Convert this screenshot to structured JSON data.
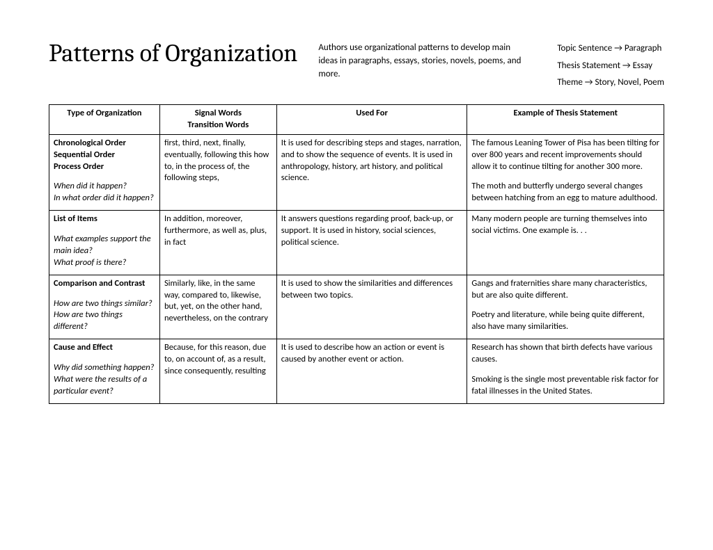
{
  "header": {
    "title": "Patterns of Organization",
    "intro": "Authors use organizational patterns to develop main ideas in paragraphs, essays, stories, novels, poems, and more.",
    "note1": "Topic Sentence → Paragraph",
    "note2": "Thesis Statement → Essay",
    "note3": "Theme → Story, Novel, Poem"
  },
  "table": {
    "headers": {
      "col1": "Type of Organization",
      "col2a": "Signal Words",
      "col2b": "Transition Words",
      "col3": "Used For",
      "col4": "Example of Thesis Statement"
    },
    "rows": [
      {
        "type_bold1": "Chronological Order",
        "type_bold2": "Sequential Order",
        "type_bold3": "Process Order",
        "type_q1": "When did it happen?",
        "type_q2": "In what order did it happen?",
        "signals": "first, third, next, finally, eventually, following this how to, in the process of, the following steps,",
        "used": "It is used for describing steps and stages, narration, and to show the sequence of events.  It is used in anthropology, history, art history, and political science.",
        "ex1": "The famous Leaning Tower of Pisa has been tilting for over 800 years and recent improvements should allow it to continue tilting for another 300 more.",
        "ex2": "The moth and butterfly undergo several changes between hatching from an egg to mature adulthood."
      },
      {
        "type_bold1": "List of Items",
        "type_q1": "What examples support the main idea?",
        "type_q2": "What proof is there?",
        "signals": "In addition, moreover, furthermore, as well as, plus, in fact",
        "used": "It answers questions regarding proof, back-up, or support. It is used in history, social sciences, political science.",
        "ex1": "Many modern people are turning themselves into social victims.  One example is. . ."
      },
      {
        "type_bold1": "Comparison and Contrast",
        "type_q1": "How are two things similar?",
        "type_q2": "How are two things different?",
        "signals": "Similarly, like, in the same way, compared to, likewise, but, yet, on the other hand, nevertheless, on the contrary",
        "used": "It is used to show the similarities and differences between two topics.",
        "ex1": "Gangs and fraternities share many characteristics, but are also quite different.",
        "ex2": "Poetry and literature, while being quite different, also have many similarities."
      },
      {
        "type_bold1": "Cause and Effect",
        "type_q1": "Why did something happen?",
        "type_q2": "What were the results of a particular event?",
        "signals": "Because, for this reason, due to,  on account of, as a result, since consequently, resulting",
        "used": "It is used to describe how an action or event is caused by another event or action.",
        "ex1": "Research has shown that birth defects have various causes.",
        "ex2": "Smoking is the single most preventable risk factor for fatal illnesses in the United States."
      }
    ]
  }
}
